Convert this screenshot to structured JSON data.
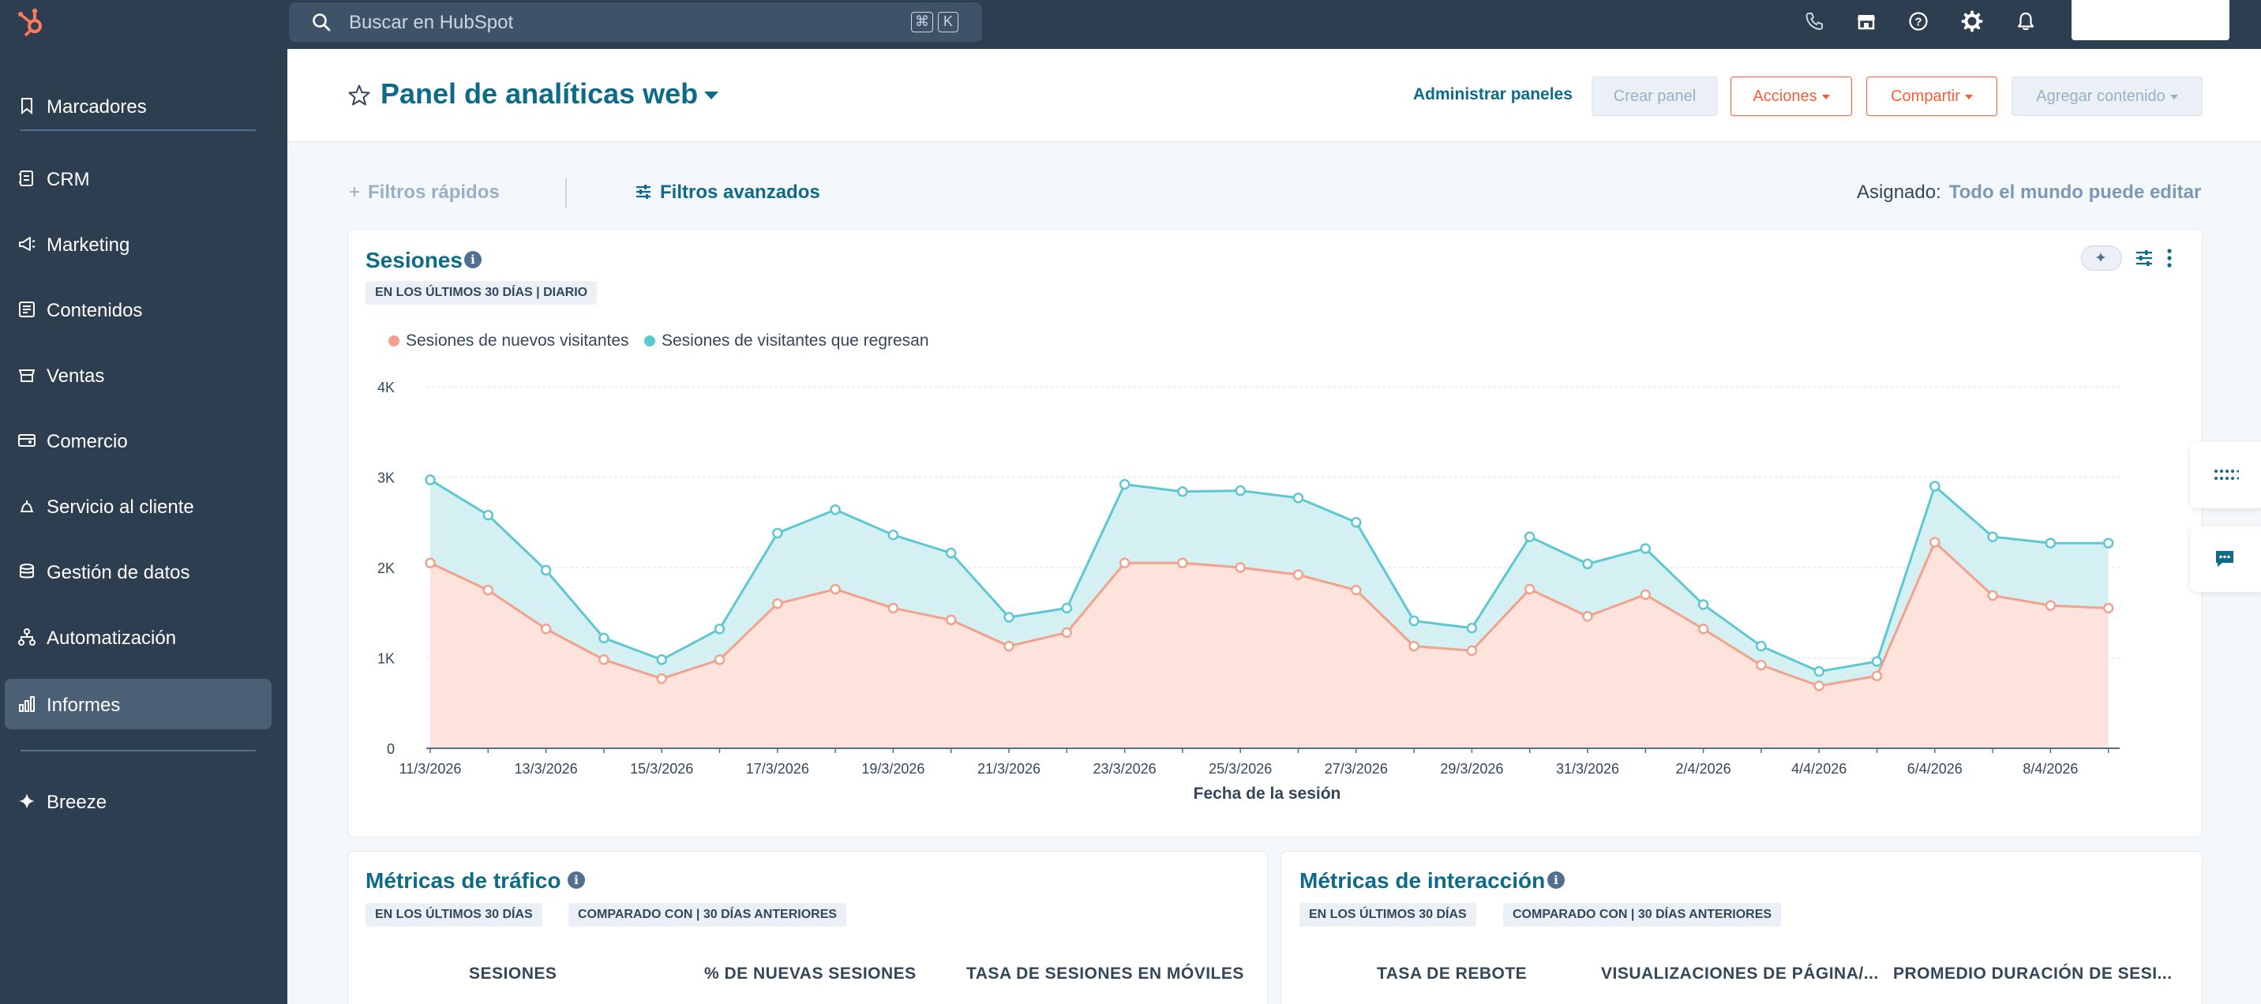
{
  "topbar": {
    "search_placeholder": "Buscar en HubSpot",
    "shortcut_keys": [
      "⌘",
      "K"
    ]
  },
  "sidebar": {
    "items": [
      {
        "label": "Marcadores",
        "icon": "bookmark-icon"
      },
      {
        "label": "CRM",
        "icon": "crm-icon"
      },
      {
        "label": "Marketing",
        "icon": "megaphone-icon"
      },
      {
        "label": "Contenidos",
        "icon": "content-icon"
      },
      {
        "label": "Ventas",
        "icon": "sales-icon"
      },
      {
        "label": "Comercio",
        "icon": "commerce-icon"
      },
      {
        "label": "Servicio al cliente",
        "icon": "service-icon"
      },
      {
        "label": "Gestión de datos",
        "icon": "database-icon"
      },
      {
        "label": "Automatización",
        "icon": "automation-icon"
      },
      {
        "label": "Informes",
        "icon": "reports-icon",
        "active": true
      },
      {
        "label": "Breeze",
        "icon": "sparkle-icon"
      }
    ]
  },
  "header": {
    "title": "Panel de analíticas web",
    "manage_link": "Administrar paneles",
    "create_button": "Crear panel",
    "actions_button": "Acciones",
    "share_button": "Compartir",
    "add_content_button": "Agregar contenido"
  },
  "filters": {
    "quick": "Filtros rápidos",
    "advanced": "Filtros avanzados",
    "assigned_label": "Asignado:",
    "assigned_value": "Todo el mundo puede editar"
  },
  "sessions_card": {
    "title": "Sesiones",
    "tag": "EN LOS ÚLTIMOS 30 DÍAS | DIARIO",
    "legend": [
      "Sesiones de nuevos visitantes",
      "Sesiones de visitantes que regresan"
    ]
  },
  "traffic_card": {
    "title": "Métricas de tráfico",
    "tags": [
      "EN LOS ÚLTIMOS 30 DÍAS",
      "COMPARADO CON | 30 DÍAS ANTERIORES"
    ],
    "metrics": [
      "SESIONES",
      "% DE NUEVAS SESIONES",
      "TASA DE SESIONES EN MÓVILES"
    ]
  },
  "engagement_card": {
    "title": "Métricas de interacción",
    "tags": [
      "EN LOS ÚLTIMOS 30 DÍAS",
      "COMPARADO CON | 30 DÍAS ANTERIORES"
    ],
    "metrics": [
      "TASA DE REBOTE",
      "VISUALIZACIONES DE PÁGINA/...",
      "PROMEDIO DURACIÓN DE SESI..."
    ]
  },
  "colors": {
    "new_series": "#f2a28c",
    "new_fill": "#fde3db",
    "return_series": "#5ec8d2",
    "return_fill": "#d4f0f3",
    "brand_orange": "#ff5c35",
    "link_blue": "#0e6a8a"
  },
  "chart_data": {
    "type": "area",
    "xlabel": "Fecha de la sesión",
    "ylabel": "",
    "ylim": [
      0,
      4000
    ],
    "y_ticks": [
      "0",
      "1K",
      "2K",
      "3K",
      "4K"
    ],
    "x_tick_labels": [
      "11/3/2026",
      "13/3/2026",
      "15/3/2026",
      "17/3/2026",
      "19/3/2026",
      "21/3/2026",
      "23/3/2026",
      "25/3/2026",
      "27/3/2026",
      "29/3/2026",
      "31/3/2026",
      "2/4/2026",
      "4/4/2026",
      "6/4/2026",
      "8/4/2026"
    ],
    "x": [
      "11/3/2026",
      "12/3/2026",
      "13/3/2026",
      "14/3/2026",
      "15/3/2026",
      "16/3/2026",
      "17/3/2026",
      "18/3/2026",
      "19/3/2026",
      "20/3/2026",
      "21/3/2026",
      "22/3/2026",
      "23/3/2026",
      "24/3/2026",
      "25/3/2026",
      "26/3/2026",
      "27/3/2026",
      "28/3/2026",
      "29/3/2026",
      "30/3/2026",
      "31/3/2026",
      "1/4/2026",
      "2/4/2026",
      "3/4/2026",
      "4/4/2026",
      "5/4/2026",
      "6/4/2026",
      "7/4/2026",
      "8/4/2026",
      "9/4/2026"
    ],
    "stacked": true,
    "series": [
      {
        "name": "Sesiones de nuevos visitantes",
        "values": [
          2050,
          1750,
          1320,
          980,
          770,
          980,
          1600,
          1760,
          1550,
          1420,
          1130,
          1280,
          2050,
          2050,
          2000,
          1920,
          1750,
          1130,
          1080,
          1760,
          1460,
          1700,
          1320,
          920,
          690,
          800,
          2280,
          1690,
          1580,
          1550
        ]
      },
      {
        "name": "Sesiones de visitantes que regresan",
        "values": [
          920,
          830,
          650,
          240,
          210,
          340,
          780,
          880,
          810,
          740,
          320,
          270,
          870,
          790,
          850,
          850,
          750,
          280,
          250,
          580,
          580,
          510,
          270,
          210,
          160,
          160,
          620,
          650,
          690,
          720
        ]
      }
    ],
    "legend_position": "top-left",
    "grid": true
  }
}
